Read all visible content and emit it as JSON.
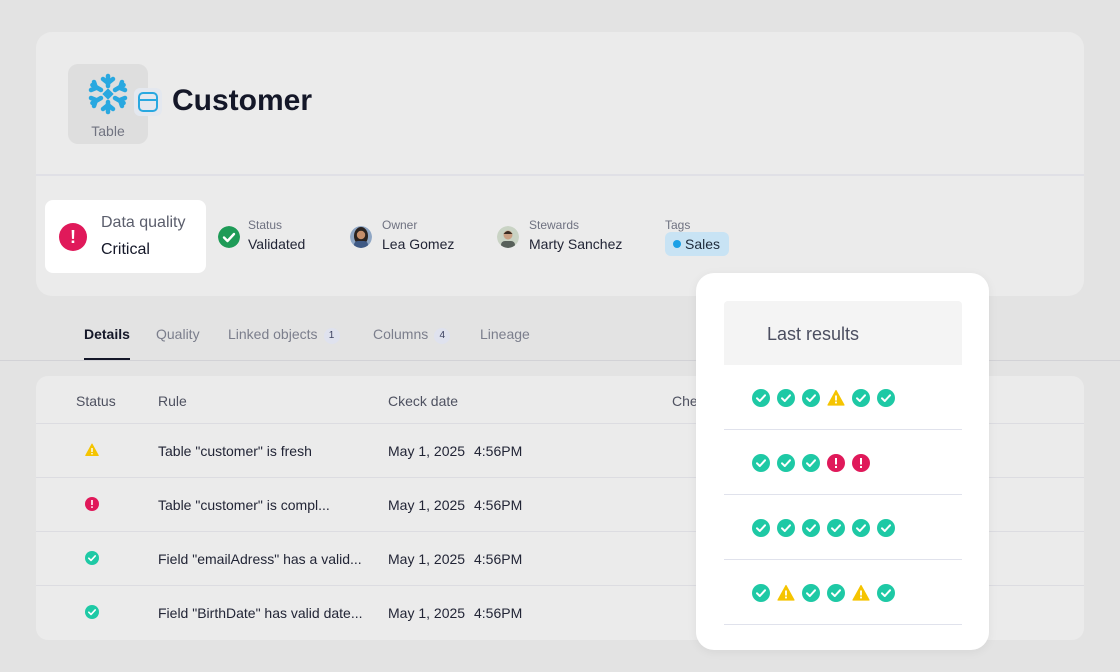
{
  "header": {
    "title": "Customer",
    "object_type": "Table",
    "source_icon": "snowflake-icon",
    "type_icon": "table-icon"
  },
  "data_quality": {
    "label": "Data quality",
    "value": "Critical",
    "icon": "alert-icon",
    "color": "#e0195a"
  },
  "status": {
    "label": "Status",
    "value": "Validated",
    "icon": "check-icon",
    "color": "#1e9b57"
  },
  "owner": {
    "label": "Owner",
    "value": "Lea Gomez"
  },
  "stewards": {
    "label": "Stewards",
    "value": "Marty Sanchez"
  },
  "tags": {
    "label": "Tags",
    "items": [
      {
        "label": "Sales",
        "color": "#1aa0e6"
      }
    ]
  },
  "tabs": [
    {
      "label": "Details",
      "active": true
    },
    {
      "label": "Quality"
    },
    {
      "label": "Linked objects",
      "count": "1"
    },
    {
      "label": "Columns",
      "count": "4"
    },
    {
      "label": "Lineage"
    }
  ],
  "table": {
    "columns": [
      "Status",
      "Rule",
      "Ckeck date",
      "Che"
    ],
    "rows": [
      {
        "status": "warning",
        "rule": "Table \"customer\" is fresh",
        "date": "May 1, 2025",
        "time": "4:56PM"
      },
      {
        "status": "error",
        "rule": "Table \"customer\" is compl...",
        "date": "May 1, 2025",
        "time": "4:56PM"
      },
      {
        "status": "success",
        "rule": "Field \"emailAdress\" has a valid...",
        "date": "May 1, 2025",
        "time": "4:56PM"
      },
      {
        "status": "success",
        "rule": "Field \"BirthDate\" has valid date...",
        "date": "May 1, 2025",
        "time": "4:56PM"
      }
    ]
  },
  "last_results": {
    "title": "Last results",
    "rows": [
      [
        "success",
        "success",
        "success",
        "warning",
        "success",
        "success"
      ],
      [
        "success",
        "success",
        "success",
        "error",
        "error"
      ],
      [
        "success",
        "success",
        "success",
        "success",
        "success",
        "success"
      ],
      [
        "success",
        "warning",
        "success",
        "success",
        "warning",
        "success"
      ]
    ]
  },
  "colors": {
    "success": "#1ec9a5",
    "warning": "#f5c400",
    "error": "#e0195a",
    "snowflake": "#29a8e0"
  }
}
